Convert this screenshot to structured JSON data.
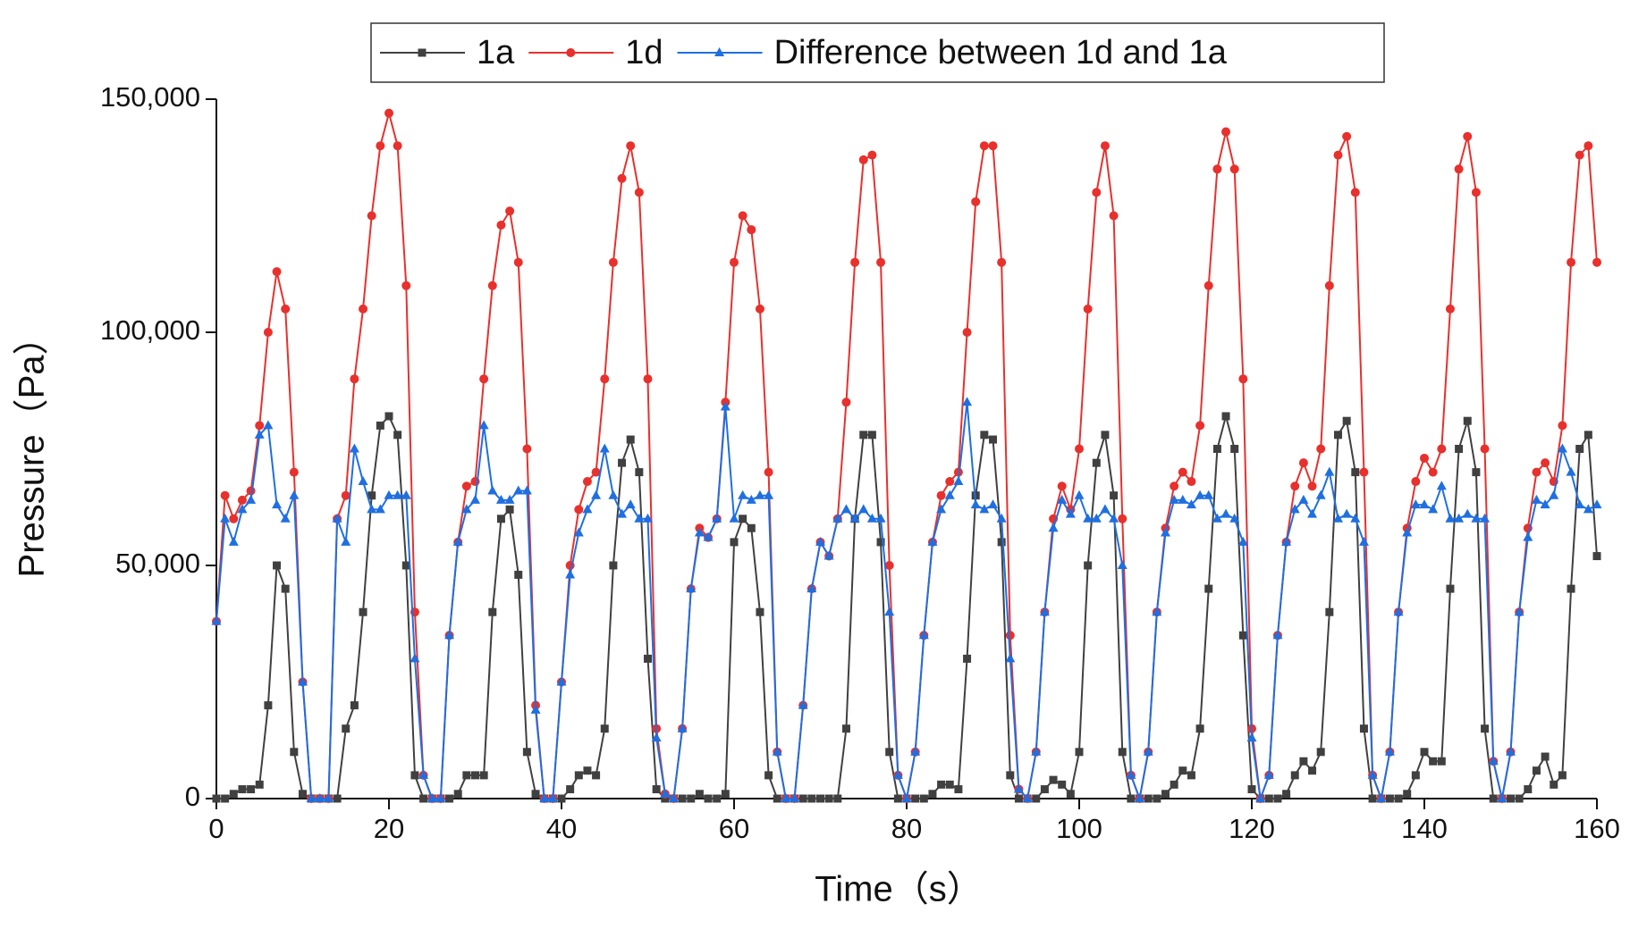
{
  "chart_data": {
    "type": "line",
    "xlabel": "Time（s）",
    "ylabel": "Pressure（Pa）",
    "xlim": [
      0,
      160
    ],
    "xticks": [
      0,
      20,
      40,
      60,
      80,
      100,
      120,
      140,
      160
    ],
    "ylim": [
      0,
      150000
    ],
    "yticks": [
      0,
      {
        "value": 50000,
        "label": "50,000"
      },
      {
        "value": 100000,
        "label": "100,000"
      },
      {
        "value": 150000,
        "label": "150,000"
      }
    ],
    "legend": "top",
    "x": [
      0,
      1,
      2,
      3,
      4,
      5,
      6,
      7,
      8,
      9,
      10,
      11,
      12,
      13,
      14,
      15,
      16,
      17,
      18,
      19,
      20,
      21,
      22,
      23,
      24,
      25,
      26,
      27,
      28,
      29,
      30,
      31,
      32,
      33,
      34,
      35,
      36,
      37,
      38,
      39,
      40,
      41,
      42,
      43,
      44,
      45,
      46,
      47,
      48,
      49,
      50,
      51,
      52,
      53,
      54,
      55,
      56,
      57,
      58,
      59,
      60,
      61,
      62,
      63,
      64,
      65,
      66,
      67,
      68,
      69,
      70,
      71,
      72,
      73,
      74,
      75,
      76,
      77,
      78,
      79,
      80,
      81,
      82,
      83,
      84,
      85,
      86,
      87,
      88,
      89,
      90,
      91,
      92,
      93,
      94,
      95,
      96,
      97,
      98,
      99,
      100,
      101,
      102,
      103,
      104,
      105,
      106,
      107,
      108,
      109,
      110,
      111,
      112,
      113,
      114,
      115,
      116,
      117,
      118,
      119,
      120,
      121,
      122,
      123,
      124,
      125,
      126,
      127,
      128,
      129,
      130,
      131,
      132,
      133,
      134,
      135,
      136,
      137,
      138,
      139,
      140,
      141,
      142,
      143,
      144,
      145,
      146,
      147,
      148,
      149,
      150,
      151,
      152,
      153,
      154,
      155,
      156,
      157,
      158,
      159,
      160
    ],
    "series": [
      {
        "name": "1a",
        "color": "#404040",
        "marker": "square",
        "values": [
          0,
          0,
          1000,
          2000,
          2000,
          3000,
          20000,
          50000,
          45000,
          10000,
          1000,
          0,
          0,
          0,
          0,
          15000,
          20000,
          40000,
          65000,
          80000,
          82000,
          78000,
          50000,
          5000,
          0,
          0,
          0,
          0,
          1000,
          5000,
          5000,
          5000,
          40000,
          60000,
          62000,
          48000,
          10000,
          1000,
          0,
          0,
          0,
          2000,
          5000,
          6000,
          5000,
          15000,
          50000,
          72000,
          77000,
          70000,
          30000,
          2000,
          0,
          0,
          0,
          0,
          1000,
          0,
          0,
          1000,
          55000,
          60000,
          58000,
          40000,
          5000,
          0,
          0,
          0,
          0,
          0,
          0,
          0,
          0,
          15000,
          60000,
          78000,
          78000,
          55000,
          10000,
          0,
          0,
          0,
          0,
          1000,
          3000,
          3000,
          2000,
          30000,
          65000,
          78000,
          77000,
          55000,
          5000,
          0,
          0,
          0,
          2000,
          4000,
          3000,
          1000,
          10000,
          50000,
          72000,
          78000,
          65000,
          10000,
          0,
          0,
          0,
          0,
          1000,
          3000,
          6000,
          5000,
          15000,
          45000,
          75000,
          82000,
          75000,
          35000,
          2000,
          0,
          0,
          0,
          1000,
          5000,
          8000,
          6000,
          10000,
          40000,
          78000,
          81000,
          70000,
          15000,
          0,
          0,
          0,
          0,
          1000,
          5000,
          10000,
          8000,
          8000,
          45000,
          75000,
          81000,
          70000,
          15000,
          0,
          0,
          0,
          0,
          2000,
          6000,
          9000,
          3000,
          5000,
          45000,
          75000,
          78000,
          52000
        ]
      },
      {
        "name": "1d",
        "color": "#e8302c",
        "marker": "circle",
        "values": [
          38000,
          65000,
          60000,
          64000,
          66000,
          80000,
          100000,
          113000,
          105000,
          70000,
          25000,
          0,
          0,
          0,
          60000,
          65000,
          90000,
          105000,
          125000,
          140000,
          147000,
          140000,
          110000,
          40000,
          5000,
          0,
          0,
          35000,
          55000,
          67000,
          68000,
          90000,
          110000,
          123000,
          126000,
          115000,
          75000,
          20000,
          0,
          0,
          25000,
          50000,
          62000,
          68000,
          70000,
          90000,
          115000,
          133000,
          140000,
          130000,
          90000,
          15000,
          1000,
          0,
          15000,
          45000,
          58000,
          56000,
          60000,
          85000,
          115000,
          125000,
          122000,
          105000,
          70000,
          10000,
          0,
          0,
          20000,
          45000,
          55000,
          52000,
          60000,
          85000,
          115000,
          137000,
          138000,
          115000,
          50000,
          5000,
          0,
          10000,
          35000,
          55000,
          65000,
          68000,
          70000,
          100000,
          128000,
          140000,
          140000,
          115000,
          35000,
          2000,
          0,
          10000,
          40000,
          60000,
          67000,
          62000,
          75000,
          105000,
          130000,
          140000,
          125000,
          60000,
          5000,
          0,
          10000,
          40000,
          58000,
          67000,
          70000,
          68000,
          80000,
          110000,
          135000,
          143000,
          135000,
          90000,
          15000,
          0,
          5000,
          35000,
          55000,
          67000,
          72000,
          67000,
          75000,
          110000,
          138000,
          142000,
          130000,
          70000,
          5000,
          0,
          10000,
          40000,
          58000,
          68000,
          73000,
          70000,
          75000,
          105000,
          135000,
          142000,
          130000,
          75000,
          8000,
          0,
          10000,
          40000,
          58000,
          70000,
          72000,
          68000,
          80000,
          115000,
          138000,
          140000,
          115000
        ]
      },
      {
        "name": "Difference between 1d and 1a",
        "color": "#1f6fe0",
        "marker": "triangle",
        "values": [
          38000,
          60000,
          55000,
          62000,
          64000,
          78000,
          80000,
          63000,
          60000,
          65000,
          25000,
          0,
          0,
          0,
          60000,
          55000,
          75000,
          68000,
          62000,
          62000,
          65000,
          65000,
          65000,
          30000,
          5000,
          0,
          0,
          35000,
          55000,
          62000,
          64000,
          80000,
          66000,
          64000,
          64000,
          66000,
          66000,
          19000,
          0,
          0,
          25000,
          48000,
          57000,
          62000,
          65000,
          75000,
          65000,
          61000,
          63000,
          60000,
          60000,
          13000,
          1000,
          0,
          15000,
          45000,
          57000,
          56000,
          60000,
          84000,
          60000,
          65000,
          64000,
          65000,
          65000,
          10000,
          0,
          0,
          20000,
          45000,
          55000,
          52000,
          60000,
          62000,
          60000,
          62000,
          60000,
          60000,
          40000,
          5000,
          0,
          10000,
          35000,
          55000,
          62000,
          65000,
          68000,
          85000,
          63000,
          62000,
          63000,
          60000,
          30000,
          2000,
          0,
          10000,
          40000,
          58000,
          64000,
          61000,
          65000,
          60000,
          60000,
          62000,
          60000,
          50000,
          5000,
          0,
          10000,
          40000,
          57000,
          64000,
          64000,
          63000,
          65000,
          65000,
          60000,
          61000,
          60000,
          55000,
          13000,
          0,
          5000,
          35000,
          55000,
          62000,
          64000,
          61000,
          65000,
          70000,
          60000,
          61000,
          60000,
          55000,
          5000,
          0,
          10000,
          40000,
          57000,
          63000,
          63000,
          62000,
          67000,
          60000,
          60000,
          61000,
          60000,
          60000,
          8000,
          0,
          10000,
          40000,
          56000,
          64000,
          63000,
          65000,
          75000,
          70000,
          63000,
          62000,
          63000
        ]
      }
    ]
  }
}
